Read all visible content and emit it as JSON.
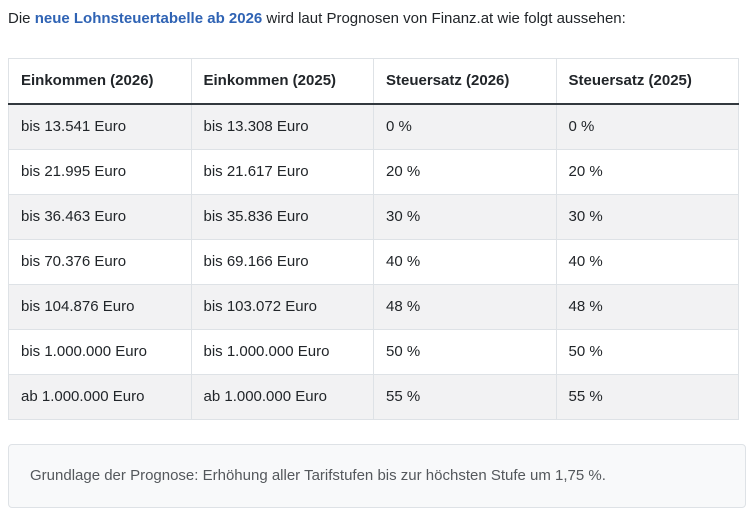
{
  "intro": {
    "prefix": "Die ",
    "highlight": "neue Lohnsteuertabelle ab 2026",
    "suffix": " wird laut Prognosen von Finanz.at wie folgt aussehen:"
  },
  "table": {
    "headers": [
      "Einkommen (2026)",
      "Einkommen (2025)",
      "Steuersatz (2026)",
      "Steuersatz (2025)"
    ],
    "rows": [
      [
        "bis 13.541 Euro",
        "bis 13.308 Euro",
        "0 %",
        "0 %"
      ],
      [
        "bis 21.995 Euro",
        "bis 21.617 Euro",
        "20 %",
        "20 %"
      ],
      [
        "bis 36.463 Euro",
        "bis 35.836 Euro",
        "30 %",
        "30 %"
      ],
      [
        "bis 70.376 Euro",
        "bis 69.166 Euro",
        "40 %",
        "40 %"
      ],
      [
        "bis 104.876 Euro",
        "bis 103.072 Euro",
        "48 %",
        "48 %"
      ],
      [
        "bis 1.000.000 Euro",
        "bis 1.000.000 Euro",
        "50 %",
        "50 %"
      ],
      [
        "ab 1.000.000 Euro",
        "ab 1.000.000 Euro",
        "55 %",
        "55 %"
      ]
    ]
  },
  "note": {
    "text": "Grundlage der Prognose: Erhöhung aller Tarifstufen bis zur höchsten Stufe um 1,75 %."
  },
  "colors": {
    "link_blue": "#2f63b4",
    "stripe_gray": "#f2f2f3",
    "cell_border": "#dee2e6",
    "header_underline": "#32383e",
    "note_background": "#f8f9fa",
    "note_text": "#54585c",
    "body_text": "#212529"
  }
}
